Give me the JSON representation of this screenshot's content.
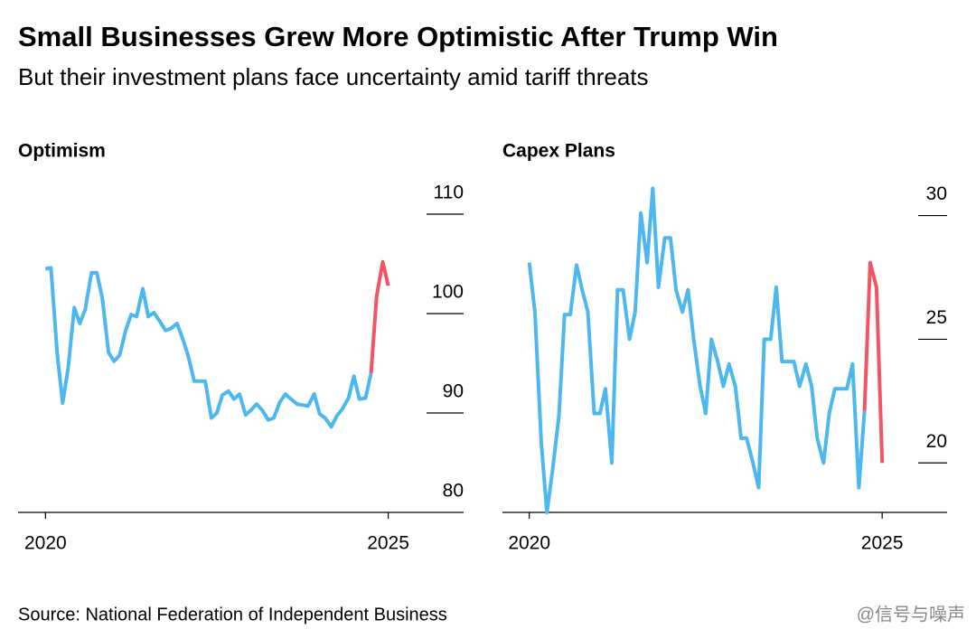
{
  "title": "Small Businesses Grew More Optimistic After Trump Win",
  "subtitle": "But their investment plans face uncertainty amid tariff threats",
  "source": "Source: National Federation of Independent Business",
  "watermark": "@信号与噪声",
  "chart_data": [
    {
      "type": "line",
      "title": "Optimism",
      "x": [
        2020,
        2020.08,
        2020.17,
        2020.25,
        2020.33,
        2020.42,
        2020.5,
        2020.58,
        2020.67,
        2020.75,
        2020.83,
        2020.92,
        2021,
        2021.08,
        2021.17,
        2021.25,
        2021.33,
        2021.42,
        2021.5,
        2021.58,
        2021.67,
        2021.75,
        2021.83,
        2021.92,
        2022,
        2022.08,
        2022.17,
        2022.25,
        2022.33,
        2022.42,
        2022.5,
        2022.58,
        2022.67,
        2022.75,
        2022.83,
        2022.92,
        2023,
        2023.08,
        2023.17,
        2023.25,
        2023.33,
        2023.42,
        2023.5,
        2023.58,
        2023.67,
        2023.75,
        2023.83,
        2023.92,
        2024,
        2024.08,
        2024.17,
        2024.25,
        2024.33,
        2024.42,
        2024.5,
        2024.58,
        2024.67,
        2024.75,
        2024.83,
        2024.92,
        2025
      ],
      "series": [
        {
          "color": "#4db8f0",
          "values": [
            104.5,
            104.6,
            96.1,
            91.0,
            94.5,
            100.6,
            99.0,
            100.4,
            104.1,
            104.1,
            101.5,
            96.1,
            95.2,
            95.8,
            98.3,
            99.9,
            99.7,
            102.5,
            99.7,
            100.1,
            99.2,
            98.3,
            98.5,
            99.0,
            97.5,
            95.8,
            93.2,
            93.2,
            93.2,
            89.5,
            90.0,
            91.8,
            92.2,
            91.4,
            91.9,
            89.8,
            90.3,
            90.9,
            90.2,
            89.3,
            89.5,
            91.1,
            91.9,
            91.4,
            90.9,
            90.8,
            90.7,
            91.9,
            89.9,
            89.5,
            88.6,
            89.7,
            90.4,
            91.5,
            93.7,
            91.4,
            91.5,
            94.0,
            null,
            null,
            null
          ]
        },
        {
          "color": "#f25563",
          "values": [
            null,
            null,
            null,
            null,
            null,
            null,
            null,
            null,
            null,
            null,
            null,
            null,
            null,
            null,
            null,
            null,
            null,
            null,
            null,
            null,
            null,
            null,
            null,
            null,
            null,
            null,
            null,
            null,
            null,
            null,
            null,
            null,
            null,
            null,
            null,
            null,
            null,
            null,
            null,
            null,
            null,
            null,
            null,
            null,
            null,
            null,
            null,
            null,
            null,
            null,
            null,
            null,
            null,
            null,
            null,
            null,
            null,
            94.0,
            101.7,
            105.2,
            102.8
          ]
        }
      ],
      "xlim": [
        2019.6,
        2026.1
      ],
      "xticks": [
        2020,
        2025
      ],
      "ylim": [
        80,
        113
      ],
      "yticks": [
        80,
        90,
        100,
        110
      ],
      "grid": true
    },
    {
      "type": "line",
      "title": "Capex Plans",
      "x": [
        2020,
        2020.08,
        2020.17,
        2020.25,
        2020.33,
        2020.42,
        2020.5,
        2020.58,
        2020.67,
        2020.75,
        2020.83,
        2020.92,
        2021,
        2021.08,
        2021.17,
        2021.25,
        2021.33,
        2021.42,
        2021.5,
        2021.58,
        2021.67,
        2021.75,
        2021.83,
        2021.92,
        2022,
        2022.08,
        2022.17,
        2022.25,
        2022.33,
        2022.42,
        2022.5,
        2022.58,
        2022.67,
        2022.75,
        2022.83,
        2022.92,
        2023,
        2023.08,
        2023.17,
        2023.25,
        2023.33,
        2023.42,
        2023.5,
        2023.58,
        2023.67,
        2023.75,
        2023.83,
        2023.92,
        2024,
        2024.08,
        2024.17,
        2024.25,
        2024.33,
        2024.42,
        2024.5,
        2024.58,
        2024.67,
        2024.75,
        2024.83,
        2024.92,
        2025
      ],
      "series": [
        {
          "color": "#4db8f0",
          "values": [
            28.1,
            26.1,
            20.8,
            18.0,
            19.7,
            21.9,
            26.0,
            26.0,
            28.0,
            27.0,
            26.1,
            22.0,
            22.0,
            23.0,
            20.0,
            27.0,
            27.0,
            25.0,
            26.1,
            30.1,
            28.1,
            31.1,
            27.1,
            29.1,
            29.1,
            27.0,
            26.1,
            27.0,
            25.0,
            23.1,
            22.0,
            25.0,
            24.1,
            23.1,
            24.0,
            23.1,
            21.0,
            21.0,
            20.0,
            19.0,
            25.0,
            25.0,
            27.1,
            24.1,
            24.1,
            24.1,
            23.1,
            24.0,
            23.1,
            21.0,
            20.0,
            22.0,
            23.0,
            23.0,
            23.0,
            24.0,
            19.0,
            22.1,
            null,
            null,
            null
          ]
        },
        {
          "color": "#f25563",
          "values": [
            null,
            null,
            null,
            null,
            null,
            null,
            null,
            null,
            null,
            null,
            null,
            null,
            null,
            null,
            null,
            null,
            null,
            null,
            null,
            null,
            null,
            null,
            null,
            null,
            null,
            null,
            null,
            null,
            null,
            null,
            null,
            null,
            null,
            null,
            null,
            null,
            null,
            null,
            null,
            null,
            null,
            null,
            null,
            null,
            null,
            null,
            null,
            null,
            null,
            null,
            null,
            null,
            null,
            null,
            null,
            null,
            null,
            22.1,
            28.1,
            27.1,
            20.0
          ]
        }
      ],
      "xlim": [
        2019.62,
        2025.92
      ],
      "xticks": [
        2020,
        2025
      ],
      "ylim": [
        18,
        31.3
      ],
      "yticks": [
        20,
        25,
        30
      ],
      "grid": true
    }
  ]
}
